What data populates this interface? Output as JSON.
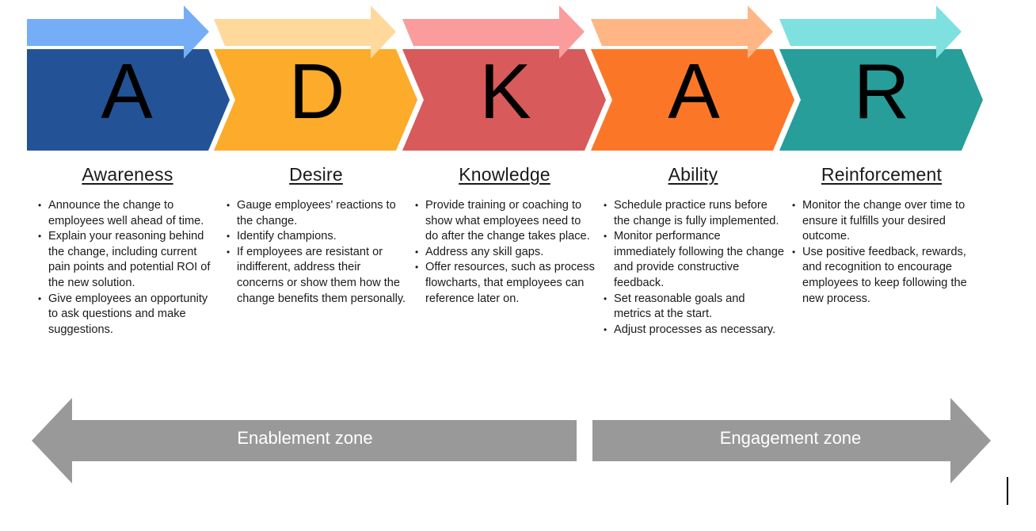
{
  "stages": [
    {
      "letter": "A",
      "title": "Awareness",
      "body_color": "#235396",
      "arrow_color": "#75AEF6",
      "bullets": [
        "Announce the change to employees well ahead of time.",
        "Explain your reasoning behind the change, including current pain points and potential ROI of the new solution.",
        "Give employees an opportunity to ask questions and make suggestions."
      ]
    },
    {
      "letter": "D",
      "title": "Desire",
      "body_color": "#FCAB2A",
      "arrow_color": "#FFD89C",
      "bullets": [
        "Gauge employees' reactions to the change.",
        "Identify champions.",
        "If employees are resistant or indifferent, address their concerns or show them how the change benefits them personally."
      ]
    },
    {
      "letter": "K",
      "title": "Knowledge",
      "body_color": "#D85A5A",
      "arrow_color": "#FA9C9C",
      "bullets": [
        "Provide training or coaching to show what employees need to do after the change takes place.",
        "Address any skill gaps.",
        "Offer resources, such as process flowcharts, that employees can reference later on."
      ]
    },
    {
      "letter": "A",
      "title": "Ability",
      "body_color": "#FB7727",
      "arrow_color": "#FFB584",
      "bullets": [
        "Schedule practice runs before the change is fully implemented.",
        "Monitor performance immediately following the change and provide constructive feedback.",
        "Set reasonable goals and metrics at the start.",
        "Adjust processes as necessary."
      ]
    },
    {
      "letter": "R",
      "title": "Reinforcement",
      "body_color": "#279E9A",
      "arrow_color": "#7FE0E0",
      "bullets": [
        "Monitor the change over time to ensure it fulfills your desired outcome.",
        "Use positive feedback, rewards, and recognition to encourage employees to keep following the new process."
      ]
    }
  ],
  "zones": {
    "enablement": "Enablement zone",
    "engagement": "Engagement zone",
    "color": "#999999"
  }
}
